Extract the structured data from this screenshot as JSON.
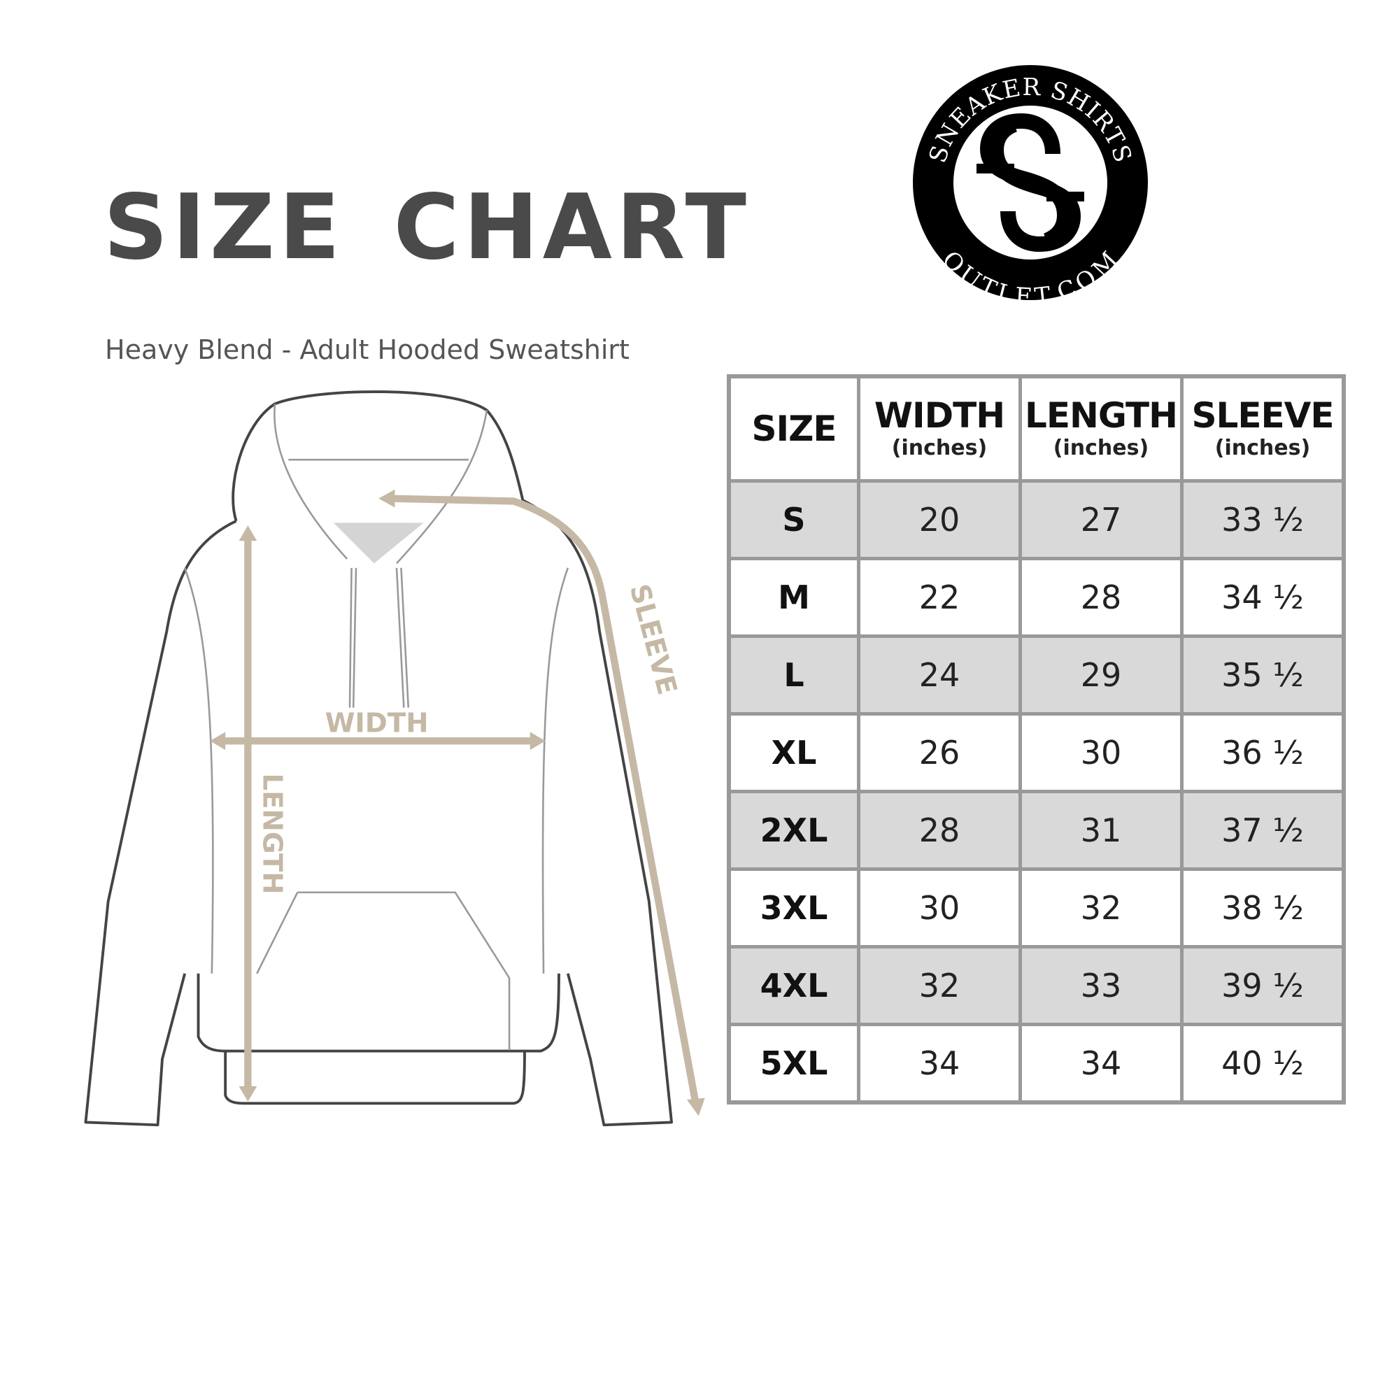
{
  "header": {
    "title": "SIZE CHART",
    "subtitle": "Heavy Blend - Adult Hooded Sweatshirt"
  },
  "logo": {
    "text_top": "SNEAKER SHIRTS",
    "text_bottom": "OUTLET.COM",
    "monogram": "SS"
  },
  "diagram": {
    "width_label": "WIDTH",
    "length_label": "LENGTH",
    "sleeve_label": "SLEEVE",
    "arrow_color": "#c5b8a5"
  },
  "table": {
    "columns": [
      {
        "label": "SIZE",
        "unit": ""
      },
      {
        "label": "WIDTH",
        "unit": "(inches)"
      },
      {
        "label": "LENGTH",
        "unit": "(inches)"
      },
      {
        "label": "SLEEVE",
        "unit": "(inches)"
      }
    ],
    "rows": [
      [
        "S",
        "20",
        "27",
        "33 ½"
      ],
      [
        "M",
        "22",
        "28",
        "34 ½"
      ],
      [
        "L",
        "24",
        "29",
        "35 ½"
      ],
      [
        "XL",
        "26",
        "30",
        "36 ½"
      ],
      [
        "2XL",
        "28",
        "31",
        "37 ½"
      ],
      [
        "3XL",
        "30",
        "32",
        "38 ½"
      ],
      [
        "4XL",
        "32",
        "33",
        "39 ½"
      ],
      [
        "5XL",
        "34",
        "34",
        "40 ½"
      ]
    ],
    "shade_color": "#d9d9d9",
    "border_color": "#999999"
  }
}
